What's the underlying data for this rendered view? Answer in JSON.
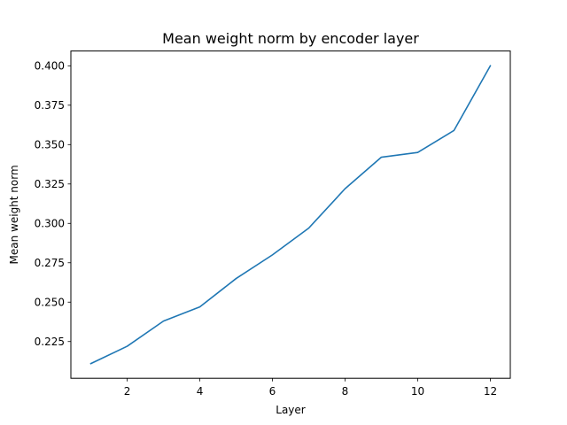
{
  "chart_data": {
    "type": "line",
    "title": "Mean weight norm by encoder layer",
    "xlabel": "Layer",
    "ylabel": "Mean weight norm",
    "xlim": [
      0.45,
      12.55
    ],
    "ylim": [
      0.2017,
      0.4094
    ],
    "x_ticks": [
      2,
      4,
      6,
      8,
      10,
      12
    ],
    "y_ticks": [
      0.225,
      0.25,
      0.275,
      0.3,
      0.325,
      0.35,
      0.375,
      0.4
    ],
    "grid": false,
    "series": [
      {
        "color": "#1f77b4",
        "x": [
          1,
          2,
          3,
          4,
          5,
          6,
          7,
          8,
          9,
          10,
          11,
          12
        ],
        "y": [
          0.211,
          0.222,
          0.238,
          0.247,
          0.265,
          0.28,
          0.297,
          0.322,
          0.342,
          0.345,
          0.359,
          0.4
        ]
      }
    ]
  }
}
